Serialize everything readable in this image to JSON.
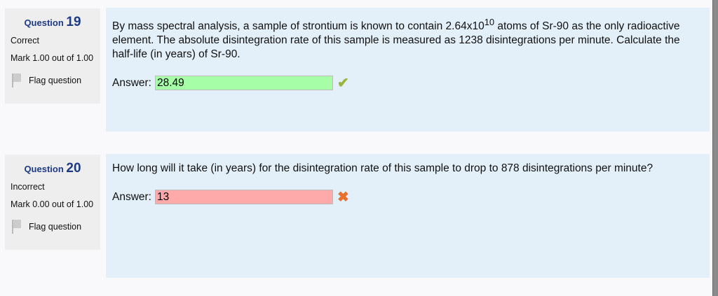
{
  "questions": [
    {
      "label": "Question",
      "number": "19",
      "state": "Correct",
      "mark": "Mark 1.00 out of 1.00",
      "flag": "Flag question",
      "text_before": "By mass spectral analysis, a sample of strontium is known to contain 2.64x10",
      "superscript": "10",
      "text_after": " atoms of Sr-90 as the only radioactive element. The absolute disintegration rate of this sample is measured as 1238 disintegrations per minute. Calculate the half-life (in years) of Sr-90.",
      "answer_label": "Answer:",
      "answer": "28.49",
      "result_icon": "✔",
      "field_color": "#a6ffa6",
      "icon_color": "#9ab53a"
    },
    {
      "label": "Question",
      "number": "20",
      "state": "Incorrect",
      "mark": "Mark 0.00 out of 1.00",
      "flag": "Flag question",
      "text_before": "How long will it take (in years) for the disintegration rate of this sample to drop to 878 disintegrations per minute?",
      "answer_label": "Answer:",
      "answer": "13",
      "result_icon": "✖",
      "field_color": "#ffaaaa",
      "icon_color": "#e8702a"
    }
  ]
}
